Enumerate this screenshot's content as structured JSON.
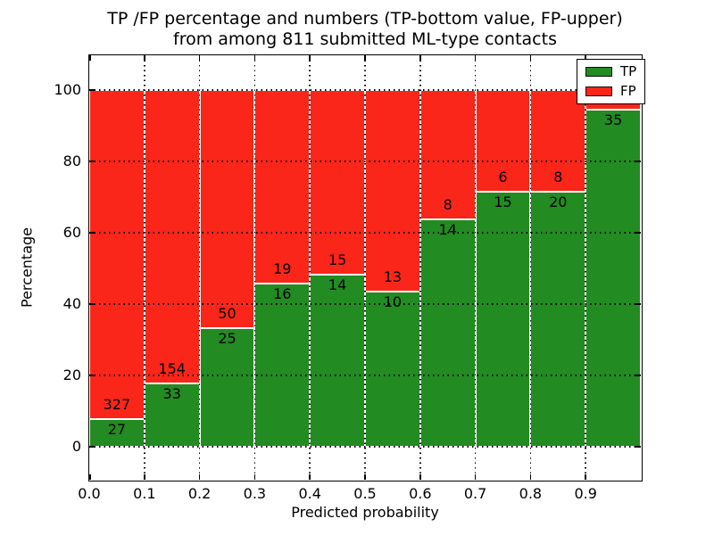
{
  "figure": {
    "title_line1": "TP /FP percentage and numbers (TP-bottom value, FP-upper)",
    "title_line2": "from among 811 submitted ML-type contacts"
  },
  "axes": {
    "xlabel": "Predicted probability",
    "ylabel": "Percentage",
    "x_tick_labels": [
      "0.0",
      "0.1",
      "0.2",
      "0.3",
      "0.4",
      "0.5",
      "0.6",
      "0.7",
      "0.8",
      "0.9"
    ],
    "y_tick_labels": [
      "0",
      "20",
      "40",
      "60",
      "80",
      "100"
    ],
    "y_tick_values": [
      0,
      20,
      40,
      60,
      80,
      100
    ]
  },
  "legend": {
    "items": [
      {
        "label": "TP",
        "color": "#228b22"
      },
      {
        "label": "FP",
        "color": "#fa2619"
      }
    ]
  },
  "chart_data": {
    "type": "bar",
    "subtype": "stacked-percentage-histogram",
    "title": "TP /FP percentage and numbers (TP-bottom value, FP-upper) from among 811 submitted ML-type contacts",
    "xlabel": "Predicted probability",
    "ylabel": "Percentage",
    "xlim": [
      0.0,
      1.0
    ],
    "ylim": [
      0,
      100
    ],
    "grid": "dotted",
    "legend_position": "upper right",
    "total_contacts": 811,
    "bin_edges": [
      0.0,
      0.1,
      0.2,
      0.3,
      0.4,
      0.5,
      0.6,
      0.7,
      0.8,
      0.9,
      1.0
    ],
    "series": [
      {
        "name": "TP",
        "color": "#228b22",
        "counts": [
          27,
          33,
          25,
          16,
          14,
          10,
          14,
          15,
          20,
          35
        ]
      },
      {
        "name": "FP",
        "color": "#fa2619",
        "counts": [
          327,
          154,
          50,
          19,
          15,
          13,
          8,
          6,
          8,
          2
        ]
      }
    ],
    "tp_percent": [
      7.6,
      17.6,
      33.3,
      45.7,
      48.3,
      43.5,
      63.6,
      71.4,
      71.4,
      94.6
    ],
    "visible_labels": {
      "tp": [
        "27",
        "33",
        "25",
        "16",
        "14",
        "10",
        "14",
        "15",
        "20",
        "35"
      ],
      "fp": [
        "327",
        "154",
        "50",
        "19",
        "15",
        "13",
        "8",
        "6",
        "8",
        null
      ]
    }
  }
}
